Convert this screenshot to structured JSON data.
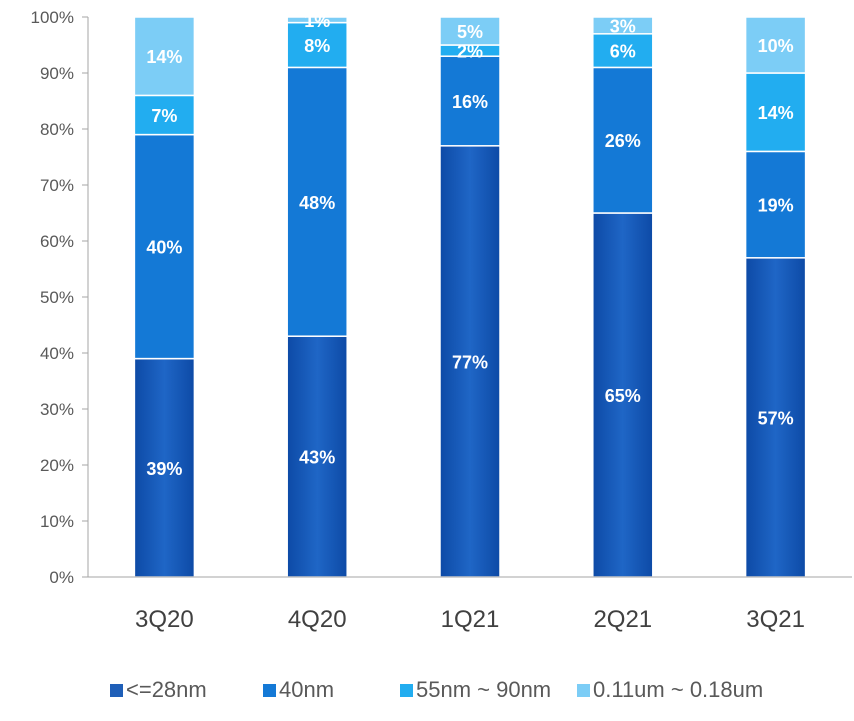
{
  "chart_data": {
    "type": "bar",
    "stacked": true,
    "title": "",
    "xlabel": "",
    "ylabel": "",
    "ylim": [
      0,
      100
    ],
    "y_ticks": [
      "0%",
      "10%",
      "20%",
      "30%",
      "40%",
      "50%",
      "60%",
      "70%",
      "80%",
      "90%",
      "100%"
    ],
    "grid": false,
    "legend_position": "bottom",
    "categories": [
      "3Q20",
      "4Q20",
      "1Q21",
      "2Q21",
      "3Q21"
    ],
    "series": [
      {
        "name": "<=28nm",
        "values": [
          39,
          43,
          77,
          65,
          57
        ],
        "labels": [
          "39%",
          "43%",
          "77%",
          "65%",
          "57%"
        ],
        "color": "#1f5fb8"
      },
      {
        "name": "40nm",
        "values": [
          40,
          48,
          16,
          26,
          19
        ],
        "labels": [
          "40%",
          "48%",
          "16%",
          "26%",
          "19%"
        ],
        "color": "#1479d6"
      },
      {
        "name": "55nm ~ 90nm",
        "values": [
          7,
          8,
          2,
          6,
          14
        ],
        "labels": [
          "7%",
          "8%",
          "2%",
          "6%",
          "14%"
        ],
        "color": "#22adf0"
      },
      {
        "name": "0.11um ~ 0.18um",
        "values": [
          14,
          1,
          5,
          3,
          10
        ],
        "labels": [
          "14%",
          "1%",
          "5%",
          "3%",
          "10%"
        ],
        "color": "#7ccdf6"
      }
    ]
  }
}
